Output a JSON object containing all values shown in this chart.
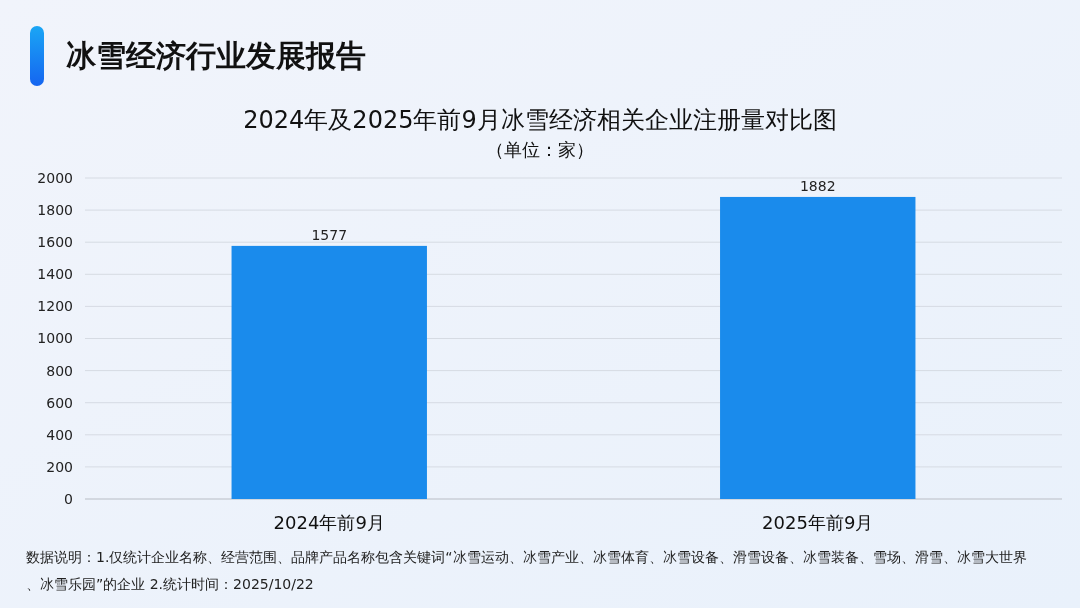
{
  "chart_data": {
    "type": "bar",
    "title": "冰雪经济行业发展报告",
    "subtitle": "2024年及2025年前9月冰雪经济相关企业注册量对比图",
    "ylabel": "（单位：家）",
    "categories": [
      "2024年前9月",
      "2025年前9月"
    ],
    "values": [
      1577,
      1882
    ],
    "color": "#1a8bec",
    "ylim": [
      0,
      2000
    ],
    "yticks": [
      0,
      200,
      400,
      600,
      800,
      1000,
      1200,
      1400,
      1600,
      1800,
      2000
    ],
    "grid": "y",
    "data_labels": true,
    "annotations": [
      "数据说明：1.仅统计企业名称、经营范围、品牌产品名称包含关键词“冰雪运动、冰雪产业、冰雪体育、冰雪设备、滑雪设备、冰雪装备、雪场、滑雪、冰雪大世界、冰雪乐园”的企业 2.统计时间：2025/10/22"
    ]
  }
}
